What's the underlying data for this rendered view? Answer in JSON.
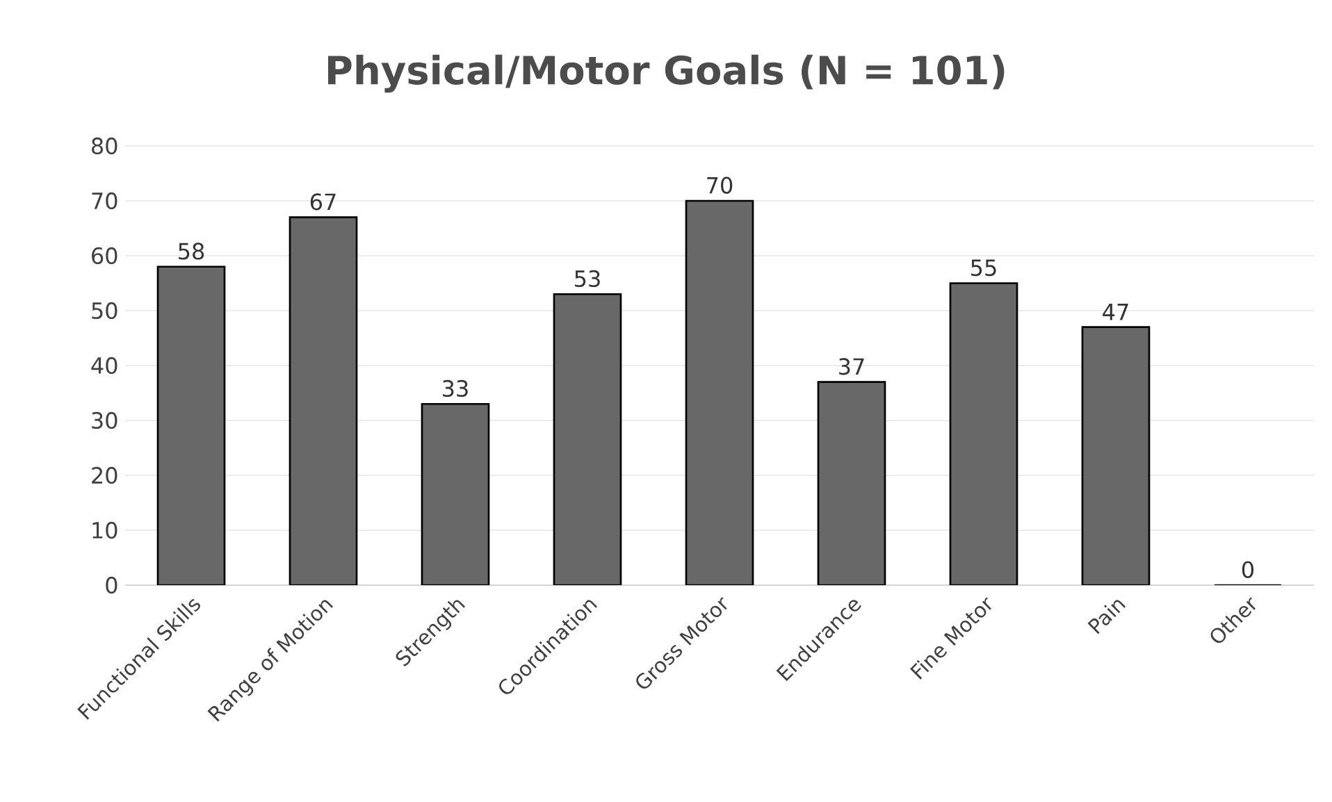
{
  "chart_data": {
    "type": "bar",
    "title": "**Physical/Motor Goals (N = 101)**",
    "categories": [
      "Functional Skills",
      "Range of Motion",
      "Strength",
      "Coordination",
      "Gross Motor",
      "Endurance",
      "Fine Motor",
      "Pain",
      "Other"
    ],
    "values": [
      58,
      67,
      33,
      53,
      70,
      37,
      55,
      47,
      0
    ],
    "color": "#686868",
    "ylim": [
      0,
      80
    ],
    "yticks": [
      0,
      10,
      20,
      30,
      40,
      50,
      60,
      70,
      80
    ],
    "grid": "y",
    "data_labels": true
  }
}
